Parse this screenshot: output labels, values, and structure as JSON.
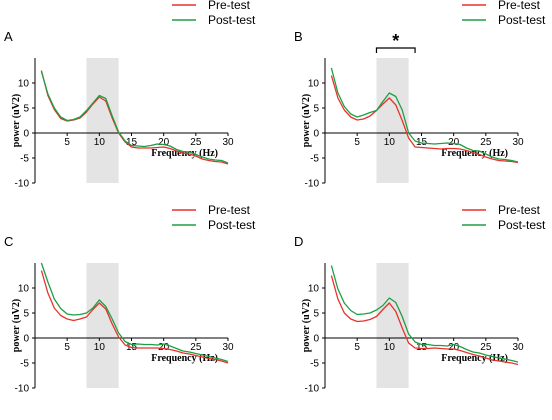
{
  "colors": {
    "pre": "#e8322b",
    "post": "#1e9e44",
    "shade": "#e4e4e4",
    "axis": "#000000"
  },
  "legend": {
    "pre_label": "Pre-test",
    "post_label": "Post-test"
  },
  "chart_data": [
    {
      "type": "line",
      "panel_label": "A",
      "xlabel": "Frequency (Hz)",
      "ylabel": "power  (uV2)",
      "xlim": [
        0,
        30
      ],
      "ylim": [
        -10,
        15
      ],
      "x_ticks": [
        "5",
        "10",
        "15",
        "20",
        "25",
        "30"
      ],
      "y_ticks": [
        "-10",
        "-5",
        "0",
        "5",
        "10"
      ],
      "shaded_band": [
        8,
        13
      ],
      "significance": null,
      "x": [
        1,
        2,
        3,
        4,
        5,
        6,
        7,
        8,
        9,
        10,
        11,
        12,
        13,
        14,
        15,
        16,
        17,
        18,
        19,
        20,
        21,
        22,
        23,
        24,
        25,
        26,
        27,
        28,
        29,
        30
      ],
      "series": [
        {
          "name": "Pre-test",
          "values": [
            12.5,
            7.5,
            4.7,
            2.9,
            2.4,
            2.6,
            3.0,
            4.2,
            5.8,
            7.2,
            6.4,
            3.0,
            0.0,
            -1.8,
            -2.8,
            -3.0,
            -3.0,
            -3.0,
            -2.9,
            -2.8,
            -3.1,
            -3.6,
            -4.0,
            -4.2,
            -4.6,
            -5.2,
            -5.5,
            -5.7,
            -5.8,
            -6.2
          ]
        },
        {
          "name": "Post-test",
          "values": [
            12.3,
            7.8,
            5.0,
            3.2,
            2.5,
            2.7,
            3.2,
            4.5,
            6.0,
            7.5,
            6.9,
            3.4,
            0.2,
            -1.6,
            -2.5,
            -2.6,
            -2.7,
            -2.5,
            -2.2,
            -2.3,
            -2.6,
            -3.3,
            -3.7,
            -3.8,
            -4.3,
            -4.8,
            -5.2,
            -5.4,
            -5.5,
            -6.0
          ]
        }
      ]
    },
    {
      "type": "line",
      "panel_label": "B",
      "xlabel": "Frequency (Hz)",
      "ylabel": "power  (uV2)",
      "xlim": [
        0,
        30
      ],
      "ylim": [
        -10,
        15
      ],
      "x_ticks": [
        "5",
        "10",
        "15",
        "20",
        "25",
        "30"
      ],
      "y_ticks": [
        "-10",
        "-5",
        "0",
        "5",
        "10"
      ],
      "shaded_band": [
        8,
        13
      ],
      "significance": {
        "x_range": [
          8,
          14
        ],
        "symbol": "*"
      },
      "x": [
        1,
        2,
        3,
        4,
        5,
        6,
        7,
        8,
        9,
        10,
        11,
        12,
        13,
        14,
        15,
        16,
        17,
        18,
        19,
        20,
        21,
        22,
        23,
        24,
        25,
        26,
        27,
        28,
        29,
        30
      ],
      "series": [
        {
          "name": "Pre-test",
          "values": [
            11.5,
            7.0,
            4.6,
            3.2,
            2.6,
            2.8,
            3.4,
            4.5,
            5.8,
            7.0,
            5.6,
            2.5,
            -1.0,
            -2.8,
            -2.9,
            -3.0,
            -3.1,
            -3.2,
            -3.1,
            -3.1,
            -3.2,
            -3.5,
            -3.9,
            -4.3,
            -4.8,
            -5.2,
            -5.5,
            -5.6,
            -5.7,
            -5.9
          ]
        },
        {
          "name": "Post-test",
          "values": [
            13.0,
            8.0,
            5.3,
            3.8,
            3.2,
            3.6,
            4.1,
            4.5,
            6.3,
            8.0,
            7.3,
            4.6,
            0.0,
            -1.6,
            -2.0,
            -2.1,
            -2.2,
            -2.1,
            -2.0,
            -2.1,
            -2.3,
            -3.0,
            -3.5,
            -3.6,
            -4.2,
            -4.8,
            -5.2,
            -5.3,
            -5.5,
            -5.8
          ]
        }
      ]
    },
    {
      "type": "line",
      "panel_label": "C",
      "xlabel": "Frequency (Hz)",
      "ylabel": "power  (uV2)",
      "xlim": [
        0,
        30
      ],
      "ylim": [
        -10,
        15
      ],
      "x_ticks": [
        "5",
        "10",
        "15",
        "20",
        "25",
        "30"
      ],
      "y_ticks": [
        "-10",
        "-5",
        "0",
        "5",
        "10"
      ],
      "shaded_band": [
        8,
        13
      ],
      "significance": null,
      "x": [
        1,
        2,
        3,
        4,
        5,
        6,
        7,
        8,
        9,
        10,
        11,
        12,
        13,
        14,
        15,
        16,
        17,
        18,
        19,
        20,
        21,
        22,
        23,
        24,
        25,
        26,
        27,
        28,
        29,
        30
      ],
      "series": [
        {
          "name": "Pre-test",
          "values": [
            13.5,
            9.0,
            6.0,
            4.5,
            3.8,
            3.5,
            3.8,
            4.2,
            5.7,
            7.0,
            5.8,
            2.8,
            0.2,
            -1.4,
            -1.9,
            -2.0,
            -2.0,
            -2.0,
            -2.0,
            -2.1,
            -2.3,
            -2.6,
            -3.0,
            -3.2,
            -3.5,
            -3.8,
            -4.1,
            -4.3,
            -4.6,
            -5.0
          ]
        },
        {
          "name": "Post-test",
          "values": [
            15.0,
            11.2,
            7.8,
            5.9,
            4.8,
            4.6,
            4.7,
            5.0,
            6.0,
            7.6,
            6.3,
            3.8,
            1.0,
            -0.7,
            -1.3,
            -1.2,
            -1.3,
            -1.3,
            -1.4,
            -1.2,
            -1.6,
            -2.1,
            -2.6,
            -2.8,
            -3.1,
            -3.4,
            -3.7,
            -4.0,
            -4.3,
            -4.7
          ]
        }
      ]
    },
    {
      "type": "line",
      "panel_label": "D",
      "xlabel": "Frequency (Hz)",
      "ylabel": "power  (uV2)",
      "xlim": [
        0,
        30
      ],
      "ylim": [
        -10,
        15
      ],
      "x_ticks": [
        "5",
        "10",
        "15",
        "20",
        "25",
        "30"
      ],
      "y_ticks": [
        "-10",
        "-5",
        "0",
        "5",
        "10"
      ],
      "shaded_band": [
        8,
        13
      ],
      "significance": null,
      "x": [
        1,
        2,
        3,
        4,
        5,
        6,
        7,
        8,
        9,
        10,
        11,
        12,
        13,
        14,
        15,
        16,
        17,
        18,
        19,
        20,
        21,
        22,
        23,
        24,
        25,
        26,
        27,
        28,
        29,
        30
      ],
      "series": [
        {
          "name": "Pre-test",
          "values": [
            12.5,
            7.8,
            5.0,
            3.8,
            3.3,
            3.4,
            3.7,
            4.3,
            5.7,
            7.0,
            5.3,
            2.0,
            -1.0,
            -2.0,
            -2.1,
            -2.1,
            -2.0,
            -2.1,
            -2.2,
            -2.2,
            -2.5,
            -2.9,
            -3.3,
            -3.6,
            -4.0,
            -4.4,
            -4.6,
            -4.8,
            -5.0,
            -5.3
          ]
        },
        {
          "name": "Post-test",
          "values": [
            14.5,
            9.8,
            7.0,
            5.5,
            4.7,
            4.8,
            5.0,
            5.6,
            6.5,
            8.0,
            7.1,
            4.3,
            0.8,
            -0.8,
            -1.3,
            -1.3,
            -1.5,
            -1.5,
            -1.6,
            -1.3,
            -1.7,
            -2.3,
            -2.8,
            -3.0,
            -3.4,
            -3.7,
            -4.0,
            -4.2,
            -4.5,
            -4.8
          ]
        }
      ]
    }
  ]
}
